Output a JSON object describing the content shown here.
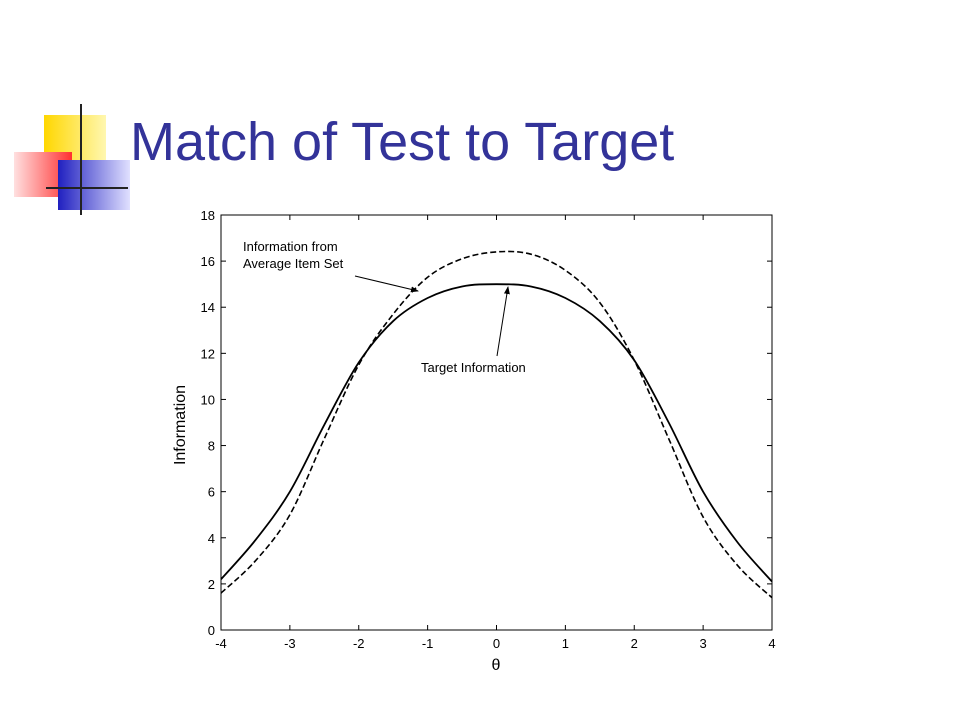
{
  "slide_title": "Match of Test to Target",
  "chart_data": {
    "type": "line",
    "xlabel": "θ",
    "ylabel": "Information",
    "x": [
      -4,
      -3.5,
      -3,
      -2.5,
      -2,
      -1.5,
      -1,
      -0.5,
      0,
      0.5,
      1,
      1.5,
      2,
      2.5,
      3,
      3.5,
      4
    ],
    "series": [
      {
        "color": "#000000",
        "dash": false,
        "values": [
          2.2,
          3.9,
          6.0,
          8.9,
          11.6,
          13.4,
          14.4,
          14.9,
          15.0,
          14.9,
          14.4,
          13.4,
          11.7,
          9.0,
          6.0,
          3.8,
          2.1
        ]
      },
      {
        "color": "#000000",
        "dash": true,
        "values": [
          1.6,
          3.0,
          5.0,
          8.3,
          11.5,
          13.7,
          15.3,
          16.1,
          16.4,
          16.3,
          15.6,
          14.2,
          11.7,
          8.3,
          4.9,
          2.8,
          1.4
        ]
      }
    ],
    "annotations": [
      {
        "lines": [
          "Information from",
          "Average Item Set"
        ]
      },
      {
        "lines": [
          "Target Information"
        ]
      }
    ],
    "xlim": [
      -4,
      4
    ],
    "xticks": [
      -4,
      -3,
      -2,
      -1,
      0,
      1,
      2,
      3,
      4
    ],
    "ylim": [
      0,
      18
    ],
    "yticks": [
      0,
      2,
      4,
      6,
      8,
      10,
      12,
      14,
      16,
      18
    ]
  }
}
